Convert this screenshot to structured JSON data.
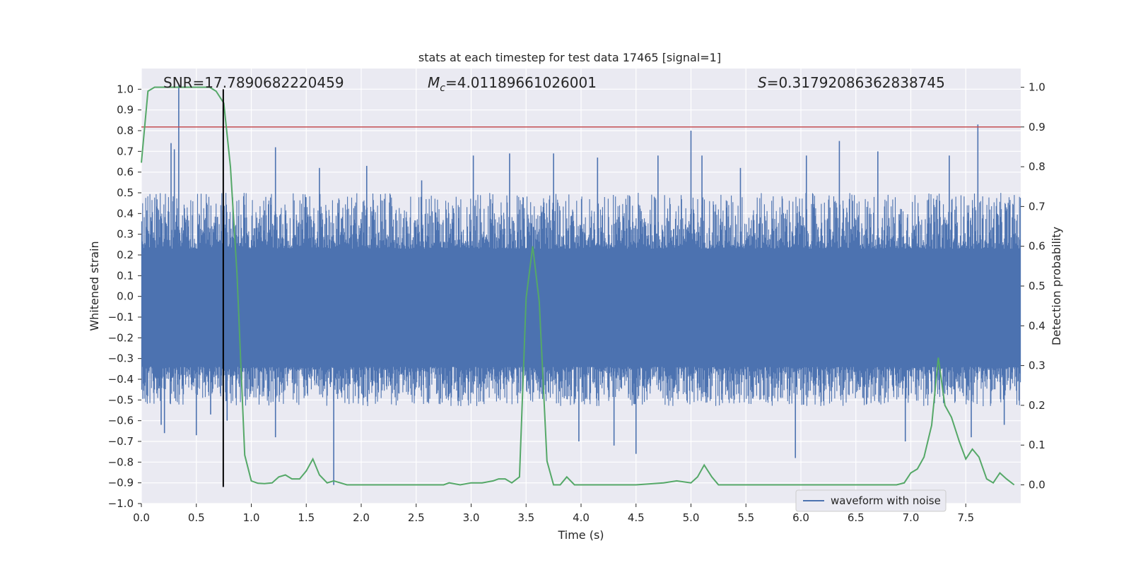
{
  "chart_data": {
    "type": "line",
    "title": "stats at each timestep for test data 17465 [signal=1]",
    "xlabel": "Time (s)",
    "ylabel": "Whitened strain",
    "y2label": "Detection probability",
    "xlim": [
      0,
      8
    ],
    "ylim": [
      -1.0,
      1.1
    ],
    "y2lim": [
      -0.047,
      1.047
    ],
    "x_ticks": [
      0.0,
      0.5,
      1.0,
      1.5,
      2.0,
      2.5,
      3.0,
      3.5,
      4.0,
      4.5,
      5.0,
      5.5,
      6.0,
      6.5,
      7.0,
      7.5
    ],
    "x_tick_labels": [
      "0.0",
      "0.5",
      "1.0",
      "1.5",
      "2.0",
      "2.5",
      "3.0",
      "3.5",
      "4.0",
      "4.5",
      "5.0",
      "5.5",
      "6.0",
      "6.5",
      "7.0",
      "7.5"
    ],
    "y_ticks": [
      -1.0,
      -0.9,
      -0.8,
      -0.7,
      -0.6,
      -0.5,
      -0.4,
      -0.3,
      -0.2,
      -0.1,
      0.0,
      0.1,
      0.2,
      0.3,
      0.4,
      0.5,
      0.6,
      0.7,
      0.8,
      0.9,
      1.0
    ],
    "y_tick_labels": [
      "−1.0",
      "−0.9",
      "−0.8",
      "−0.7",
      "−0.6",
      "−0.5",
      "−0.4",
      "−0.3",
      "−0.2",
      "−0.1",
      "0.0",
      "0.1",
      "0.2",
      "0.3",
      "0.4",
      "0.5",
      "0.6",
      "0.7",
      "0.8",
      "0.9",
      "1.0"
    ],
    "y2_ticks": [
      0.0,
      0.1,
      0.2,
      0.3,
      0.4,
      0.5,
      0.6,
      0.7,
      0.8,
      0.9,
      1.0
    ],
    "y2_tick_labels": [
      "0.0",
      "0.1",
      "0.2",
      "0.3",
      "0.4",
      "0.5",
      "0.6",
      "0.7",
      "0.8",
      "0.9",
      "1.0"
    ],
    "grid": true,
    "annotations": {
      "snr": "SNR=17.7890682220459",
      "mc_symbol": "M",
      "mc_sub": "c",
      "mc_value": "=4.01189661026001",
      "s_symbol": "S",
      "s_value": "=0.31792086362838745"
    },
    "legend": {
      "label": "waveform with noise",
      "position": "lower right"
    },
    "colors": {
      "waveform": "#4c72b0",
      "probability": "#55a868",
      "threshold": "#c44e52",
      "marker": "#000000",
      "plot_bg": "#eaeaf2",
      "grid": "#ffffff"
    },
    "threshold_probability": 0.9,
    "marker_time": 0.745,
    "marker_range": [
      -0.92,
      1.0
    ],
    "waveform": {
      "name": "waveform with noise",
      "dense_band": [
        -0.34,
        0.23
      ],
      "typical_peak_pos": 0.42,
      "typical_peak_neg": -0.45,
      "spikes": [
        {
          "x": 0.27,
          "y": 0.74
        },
        {
          "x": 0.3,
          "y": 0.71
        },
        {
          "x": 0.34,
          "y": 1.02
        },
        {
          "x": 0.18,
          "y": -0.62
        },
        {
          "x": 0.21,
          "y": -0.66
        },
        {
          "x": 0.5,
          "y": -0.67
        },
        {
          "x": 0.63,
          "y": -0.57
        },
        {
          "x": 0.78,
          "y": -0.6
        },
        {
          "x": 1.22,
          "y": 0.72
        },
        {
          "x": 1.22,
          "y": -0.68
        },
        {
          "x": 1.62,
          "y": 0.62
        },
        {
          "x": 1.75,
          "y": -0.91
        },
        {
          "x": 2.05,
          "y": 0.63
        },
        {
          "x": 2.55,
          "y": 0.56
        },
        {
          "x": 3.02,
          "y": 0.68
        },
        {
          "x": 3.35,
          "y": 0.69
        },
        {
          "x": 3.75,
          "y": 0.69
        },
        {
          "x": 3.98,
          "y": -0.7
        },
        {
          "x": 4.15,
          "y": 0.67
        },
        {
          "x": 4.3,
          "y": -0.72
        },
        {
          "x": 4.5,
          "y": -0.76
        },
        {
          "x": 4.7,
          "y": 0.68
        },
        {
          "x": 5.0,
          "y": 0.8
        },
        {
          "x": 5.1,
          "y": 0.68
        },
        {
          "x": 5.45,
          "y": 0.62
        },
        {
          "x": 5.95,
          "y": -0.78
        },
        {
          "x": 6.05,
          "y": 0.68
        },
        {
          "x": 6.35,
          "y": 0.75
        },
        {
          "x": 6.7,
          "y": 0.7
        },
        {
          "x": 6.95,
          "y": -0.7
        },
        {
          "x": 7.35,
          "y": 0.68
        },
        {
          "x": 7.55,
          "y": -0.68
        },
        {
          "x": 7.61,
          "y": 0.83
        },
        {
          "x": 7.85,
          "y": -0.62
        }
      ]
    },
    "probability": {
      "x": [
        0.0,
        0.06,
        0.12,
        0.25,
        0.37,
        0.5,
        0.62,
        0.68,
        0.75,
        0.81,
        0.87,
        0.94,
        1.0,
        1.06,
        1.12,
        1.19,
        1.25,
        1.31,
        1.37,
        1.44,
        1.5,
        1.56,
        1.62,
        1.69,
        1.75,
        1.81,
        1.87,
        1.94,
        2.0,
        2.25,
        2.5,
        2.75,
        2.8,
        2.9,
        3.0,
        3.1,
        3.2,
        3.25,
        3.31,
        3.37,
        3.44,
        3.5,
        3.56,
        3.62,
        3.69,
        3.75,
        3.81,
        3.87,
        3.94,
        4.0,
        4.25,
        4.5,
        4.75,
        4.87,
        5.0,
        5.06,
        5.12,
        5.19,
        5.25,
        5.31,
        5.5,
        5.75,
        6.0,
        6.25,
        6.5,
        6.75,
        6.87,
        6.94,
        7.0,
        7.06,
        7.12,
        7.19,
        7.25,
        7.31,
        7.37,
        7.44,
        7.5,
        7.56,
        7.62,
        7.69,
        7.75,
        7.81,
        7.87,
        7.94
      ],
      "y": [
        0.81,
        0.99,
        1.0,
        1.0,
        1.0,
        1.0,
        1.0,
        0.99,
        0.96,
        0.8,
        0.53,
        0.075,
        0.01,
        0.004,
        0.003,
        0.005,
        0.02,
        0.025,
        0.015,
        0.015,
        0.035,
        0.065,
        0.025,
        0.005,
        0.01,
        0.005,
        0.0,
        0.0,
        0.0,
        0.0,
        0.0,
        0.0,
        0.005,
        0.0,
        0.005,
        0.005,
        0.01,
        0.015,
        0.015,
        0.005,
        0.02,
        0.47,
        0.6,
        0.46,
        0.06,
        0.0,
        0.0,
        0.02,
        0.0,
        0.0,
        0.0,
        0.0,
        0.005,
        0.01,
        0.005,
        0.02,
        0.05,
        0.02,
        0.0,
        0.0,
        0.0,
        0.0,
        0.0,
        0.0,
        0.0,
        0.0,
        0.0,
        0.005,
        0.03,
        0.04,
        0.07,
        0.15,
        0.32,
        0.2,
        0.17,
        0.11,
        0.065,
        0.09,
        0.07,
        0.015,
        0.005,
        0.03,
        0.015,
        0.0
      ]
    }
  }
}
